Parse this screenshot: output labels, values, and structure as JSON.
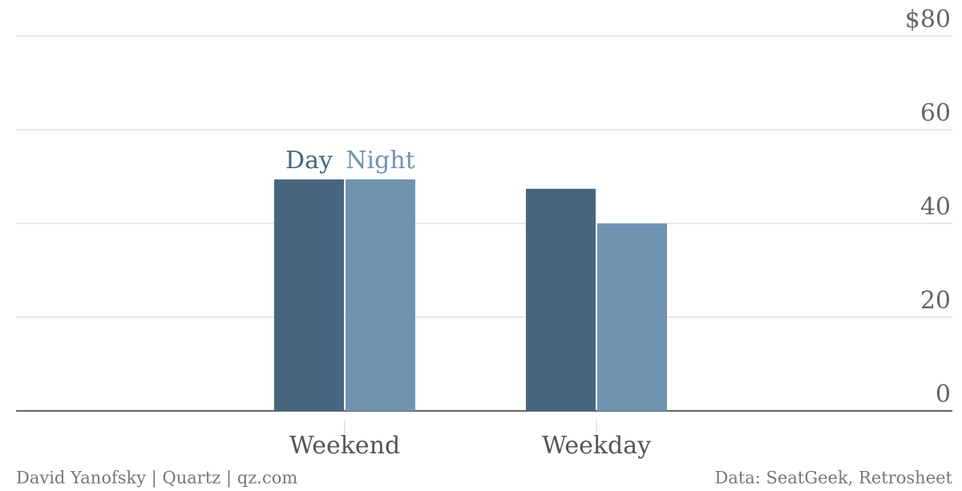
{
  "chart_data": {
    "type": "bar",
    "categories": [
      "Weekend",
      "Weekday"
    ],
    "series": [
      {
        "name": "Day",
        "color": "#46667f",
        "values": [
          49.4,
          47.4
        ]
      },
      {
        "name": "Night",
        "color": "#7193b2",
        "values": [
          49.4,
          40.0
        ]
      }
    ],
    "ylim": [
      0,
      80
    ],
    "yticks": [
      0,
      20,
      40,
      60,
      {
        "value": 80,
        "label": "$80"
      }
    ],
    "grid": true,
    "credit": "David Yanofsky | Quartz | qz.com",
    "source": "Data: SeatGeek, Retrosheet"
  }
}
